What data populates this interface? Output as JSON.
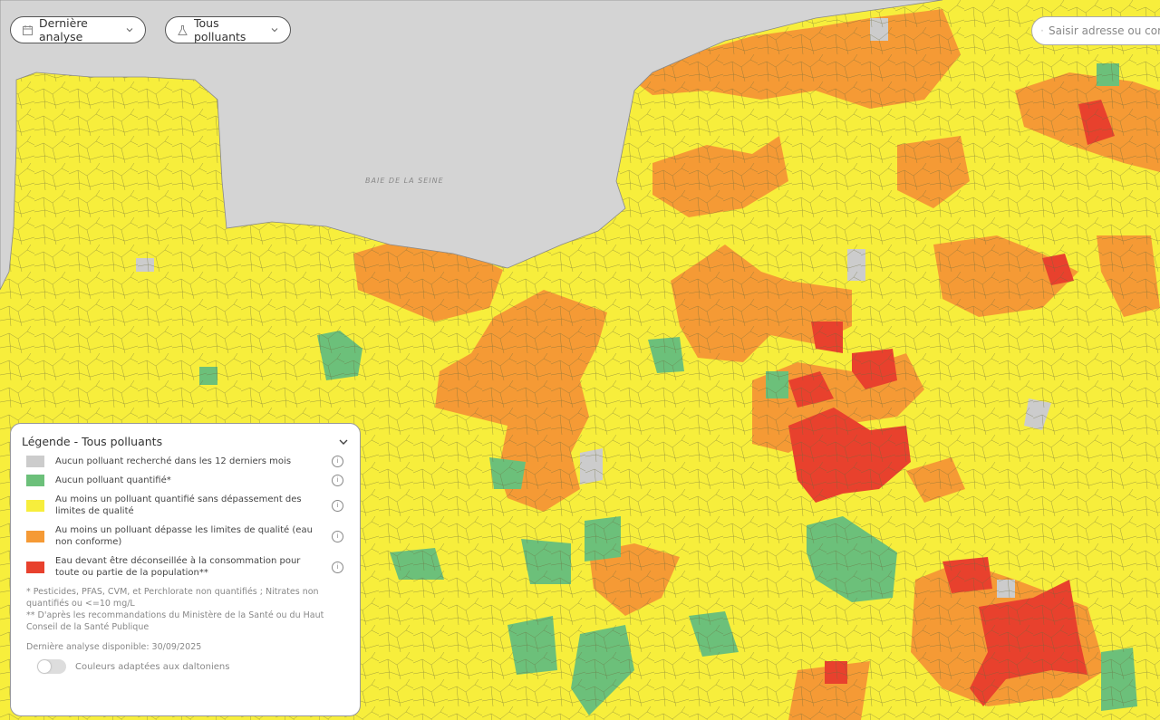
{
  "toolbar": {
    "date_filter": {
      "label": "Dernière analyse",
      "icon": "calendar-icon"
    },
    "pollutant_filter": {
      "label": "Tous polluants",
      "icon": "flask-icon"
    },
    "search": {
      "placeholder": "Saisir adresse ou commune",
      "icon": "map-pin-icon"
    }
  },
  "map": {
    "labels": {
      "bay": "BAIE DE LA SEINE"
    },
    "colors": {
      "sea": "#d4d4d4",
      "none_searched": "#cccccc",
      "none_quantified": "#6cc07a",
      "quantified_ok": "#f7ee3c",
      "exceeds": "#f59a35",
      "not_recommended": "#e8412d"
    }
  },
  "legend": {
    "title": "Légende - Tous polluants",
    "items": [
      {
        "label": "Aucun polluant recherché dans les 12 derniers mois",
        "color": "#cccccc"
      },
      {
        "label": "Aucun polluant quantifié*",
        "color": "#6cc07a"
      },
      {
        "label": "Au moins un polluant quantifié sans dépassement des limites de qualité",
        "color": "#f7ee3c"
      },
      {
        "label": "Au moins un polluant dépasse les limites de qualité (eau non conforme)",
        "color": "#f59a35"
      },
      {
        "label": "Eau devant être déconseillée à la consommation pour toute ou partie de la population**",
        "color": "#e8412d"
      }
    ],
    "note1": "* Pesticides, PFAS, CVM, et Perchlorate non quantifiés ; Nitrates non quantifiés ou <=10 mg/L",
    "note2": "** D'après les recommandations du Ministère de la Santé ou du Haut Conseil de la Santé Publique",
    "last_analysis": "Dernière analyse disponible: 30/09/2025",
    "colorblind_toggle": {
      "label": "Couleurs adaptées aux daltoniens",
      "on": false
    }
  }
}
